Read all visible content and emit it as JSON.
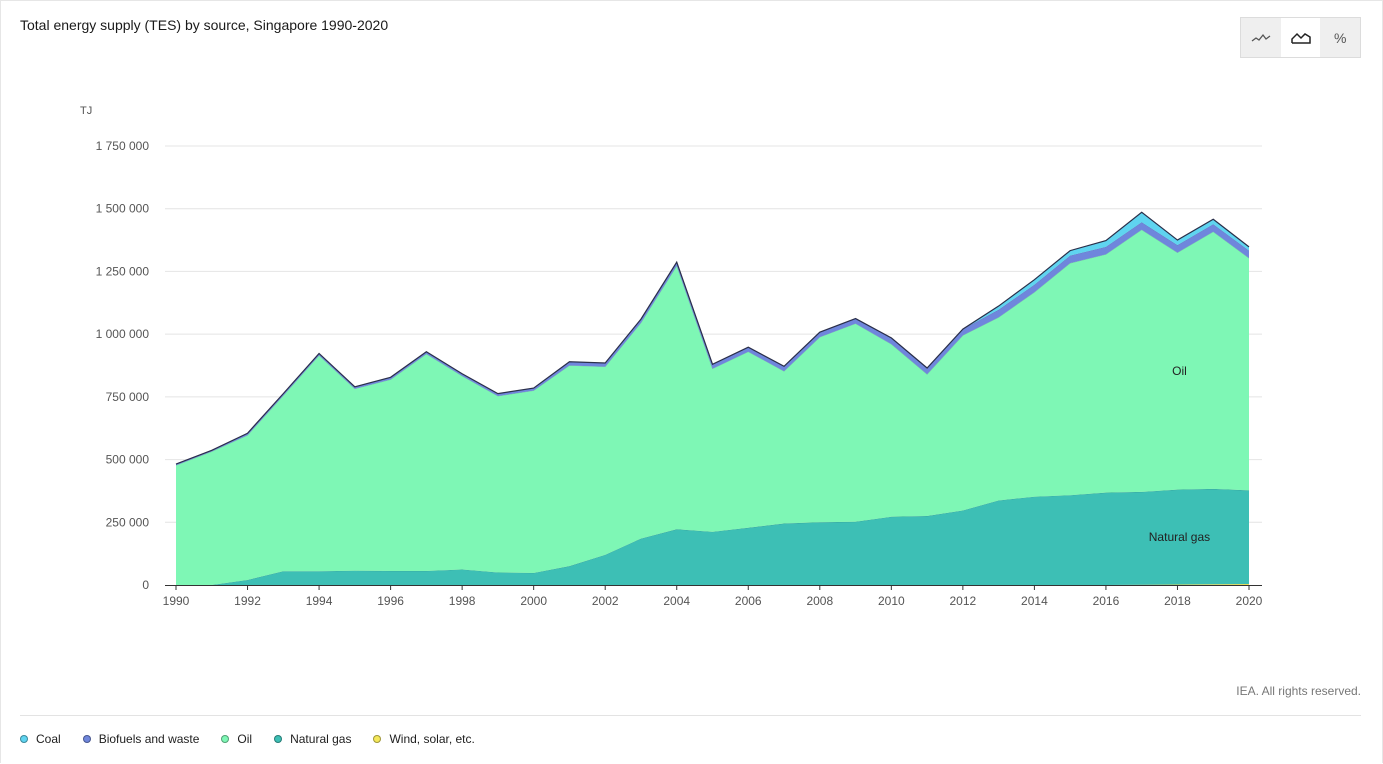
{
  "title": "Total energy supply (TES) by source, Singapore 1990-2020",
  "credit": "IEA. All rights reserved.",
  "toggles": [
    {
      "icon": "line-chart-icon",
      "active": false
    },
    {
      "icon": "area-chart-icon",
      "active": true
    },
    {
      "icon": "percent-icon",
      "label": "%",
      "active": false
    }
  ],
  "legend": [
    {
      "label": "Coal",
      "color": "#5fd4f0"
    },
    {
      "label": "Biofuels and waste",
      "color": "#6f86dc"
    },
    {
      "label": "Oil",
      "color": "#7ef7b5"
    },
    {
      "label": "Natural gas",
      "color": "#3dbfb5"
    },
    {
      "label": "Wind, solar, etc.",
      "color": "#f5e85a"
    }
  ],
  "chart_data": {
    "type": "area",
    "stacked": true,
    "title": "Total energy supply (TES) by source, Singapore 1990-2020",
    "ylabel": "TJ",
    "xlabel": "",
    "ylim": [
      0,
      1750000
    ],
    "yticks": [
      0,
      250000,
      500000,
      750000,
      1000000,
      1250000,
      1500000,
      1750000
    ],
    "ytick_labels": [
      "0",
      "250 000",
      "500 000",
      "750 000",
      "1 000 000",
      "1 250 000",
      "1 500 000",
      "1 750 000"
    ],
    "xticks": [
      1990,
      1992,
      1994,
      1996,
      1998,
      2000,
      2002,
      2004,
      2006,
      2008,
      2010,
      2012,
      2014,
      2016,
      2018,
      2020
    ],
    "grid": true,
    "x": [
      1990,
      1991,
      1992,
      1993,
      1994,
      1995,
      1996,
      1997,
      1998,
      1999,
      2000,
      2001,
      2002,
      2003,
      2004,
      2005,
      2006,
      2007,
      2008,
      2009,
      2010,
      2011,
      2012,
      2013,
      2014,
      2015,
      2016,
      2017,
      2018,
      2019,
      2020
    ],
    "series": [
      {
        "name": "Wind, solar, etc.",
        "color": "#f5e85a",
        "values": [
          0,
          0,
          0,
          0,
          0,
          0,
          0,
          0,
          0,
          0,
          0,
          0,
          0,
          0,
          0,
          0,
          0,
          0,
          0,
          0,
          0,
          0,
          0,
          0,
          0,
          0,
          0,
          1000,
          2000,
          3000,
          4000
        ]
      },
      {
        "name": "Natural gas",
        "color": "#3dbfb5",
        "label": "Natural gas",
        "values": [
          0,
          0,
          20000,
          55000,
          55000,
          57000,
          56000,
          56000,
          62000,
          50000,
          48000,
          75000,
          120000,
          185000,
          222000,
          212000,
          228000,
          245000,
          250000,
          252000,
          272000,
          275000,
          297000,
          337000,
          352000,
          358000,
          368000,
          370000,
          378000,
          380000,
          373000
        ]
      },
      {
        "name": "Oil",
        "color": "#7ef7b5",
        "label": "Oil",
        "values": [
          477000,
          532000,
          577000,
          700000,
          860000,
          725000,
          763000,
          865000,
          771000,
          703000,
          727000,
          800000,
          750000,
          860000,
          1050000,
          650000,
          702000,
          607000,
          738000,
          790000,
          688000,
          565000,
          698000,
          730000,
          815000,
          925000,
          950000,
          1045000,
          945000,
          1025000,
          926000
        ]
      },
      {
        "name": "Biofuels and waste",
        "color": "#6f86dc",
        "values": [
          5000,
          5000,
          8000,
          8000,
          8000,
          8000,
          9000,
          9000,
          9000,
          10000,
          10000,
          15000,
          15000,
          15000,
          15000,
          18000,
          18000,
          20000,
          20000,
          20000,
          25000,
          25000,
          25000,
          30000,
          30000,
          30000,
          30000,
          30000,
          30000,
          30000,
          30000
        ]
      },
      {
        "name": "Coal",
        "color": "#5fd4f0",
        "values": [
          0,
          0,
          0,
          0,
          0,
          0,
          0,
          0,
          0,
          0,
          0,
          0,
          0,
          0,
          0,
          0,
          0,
          0,
          0,
          0,
          0,
          0,
          0,
          15000,
          20000,
          20000,
          25000,
          40000,
          20000,
          20000,
          15000
        ]
      }
    ]
  }
}
